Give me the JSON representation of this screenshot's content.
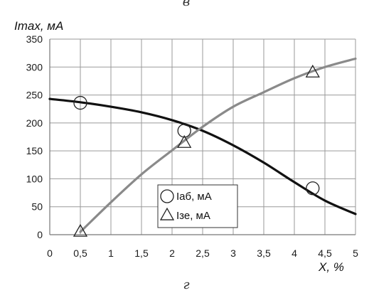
{
  "top_caption": "в",
  "bottom_caption": "г",
  "chart_data": {
    "type": "line",
    "title": "",
    "ylabel": "Imax, мА",
    "xlabel": "X, %",
    "xlim": [
      0,
      5
    ],
    "ylim": [
      0,
      350
    ],
    "x_ticks": [
      "0",
      "0,5",
      "1",
      "1,5",
      "2",
      "2,5",
      "3",
      "3,5",
      "4",
      "4,5",
      "5"
    ],
    "y_ticks": [
      "0",
      "50",
      "100",
      "150",
      "200",
      "250",
      "300",
      "350"
    ],
    "grid": true,
    "legend_position": "bottom-center",
    "series": [
      {
        "name": "Iаб, мА",
        "color": "#111111",
        "marker": "circle",
        "points": [
          [
            0.5,
            236
          ],
          [
            2.2,
            186
          ],
          [
            4.3,
            83
          ]
        ],
        "curve": [
          [
            0,
            243
          ],
          [
            0.5,
            237
          ],
          [
            1,
            229
          ],
          [
            1.5,
            219
          ],
          [
            2,
            205
          ],
          [
            2.5,
            186
          ],
          [
            3,
            160
          ],
          [
            3.5,
            129
          ],
          [
            4,
            94
          ],
          [
            4.5,
            61
          ],
          [
            5,
            37
          ]
        ]
      },
      {
        "name": "Iзе, мА",
        "color": "#8a8a8a",
        "marker": "triangle",
        "points": [
          [
            0.5,
            5
          ],
          [
            2.2,
            164
          ],
          [
            4.3,
            290
          ]
        ],
        "curve": [
          [
            0.5,
            5
          ],
          [
            1,
            58
          ],
          [
            1.5,
            108
          ],
          [
            2,
            151
          ],
          [
            2.5,
            193
          ],
          [
            3,
            229
          ],
          [
            3.5,
            255
          ],
          [
            4,
            280
          ],
          [
            4.5,
            300
          ],
          [
            5,
            315
          ]
        ]
      }
    ]
  }
}
